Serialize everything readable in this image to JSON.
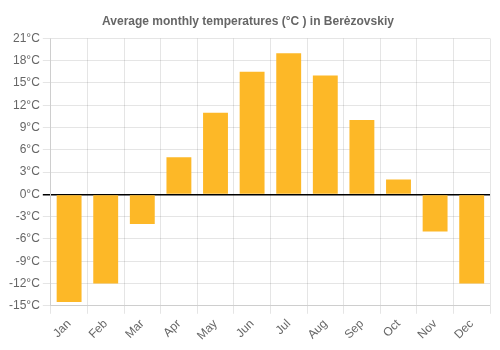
{
  "chart_data": {
    "type": "bar",
    "title": "Average monthly temperatures (°C ) in Berėzovskiy",
    "categories": [
      "Jan",
      "Feb",
      "Mar",
      "Apr",
      "May",
      "Jun",
      "Jul",
      "Aug",
      "Sep",
      "Oct",
      "Nov",
      "Dec"
    ],
    "values": [
      -14.5,
      -12.0,
      -4.0,
      5.0,
      11.0,
      16.5,
      19.0,
      16.0,
      10.0,
      2.0,
      -5.0,
      -12.0
    ],
    "color": "#FDB827",
    "ylim": [
      -15,
      21
    ],
    "yticks": [
      {
        "value": -15,
        "label": "-15°C"
      },
      {
        "value": -12,
        "label": "-12°C"
      },
      {
        "value": -9,
        "label": "-9°C"
      },
      {
        "value": -6,
        "label": "-6°C"
      },
      {
        "value": -3,
        "label": "-3°C"
      },
      {
        "value": 0,
        "label": "0°C"
      },
      {
        "value": 3,
        "label": "3°C"
      },
      {
        "value": 6,
        "label": "6°C"
      },
      {
        "value": 9,
        "label": "9°C"
      },
      {
        "value": 12,
        "label": "12°C"
      },
      {
        "value": 15,
        "label": "15°C"
      },
      {
        "value": 18,
        "label": "18°C"
      },
      {
        "value": 21,
        "label": "21°C"
      }
    ],
    "grid": true
  }
}
